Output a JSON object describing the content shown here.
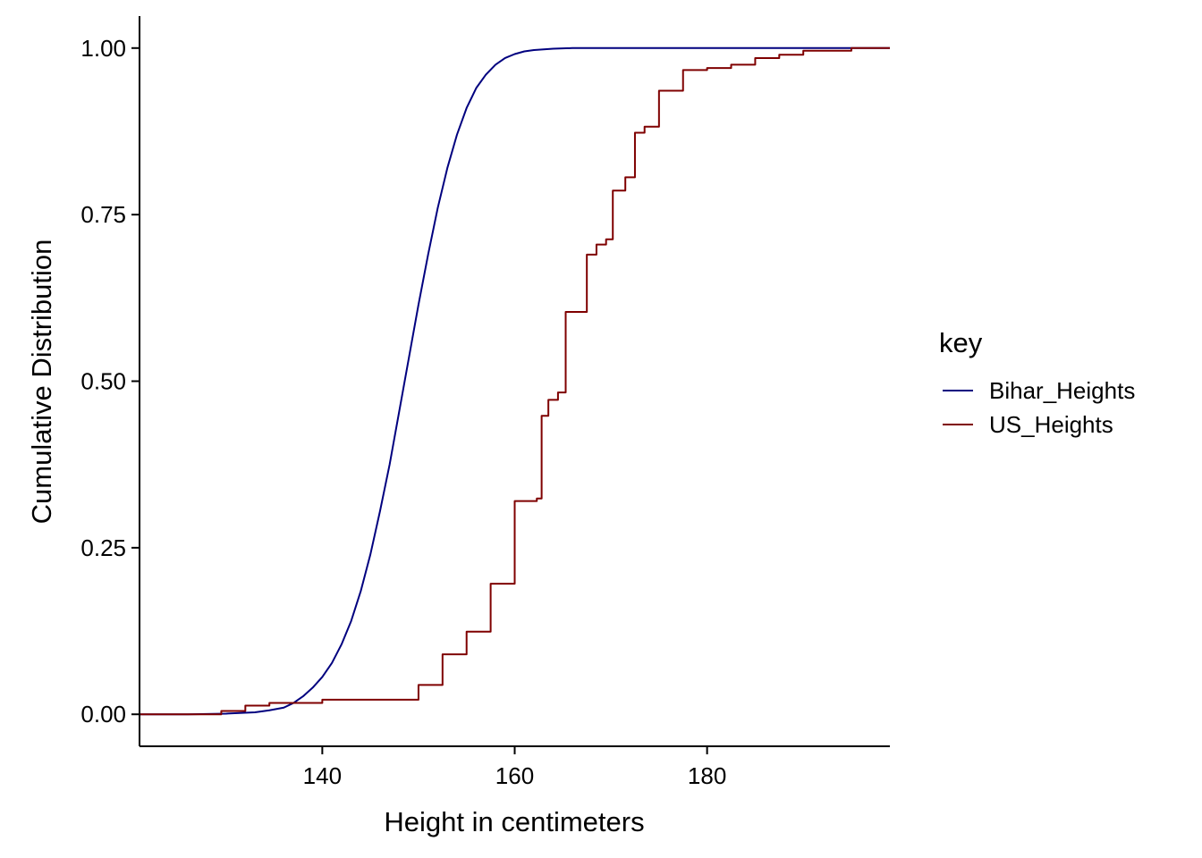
{
  "chart_data": {
    "type": "line",
    "title": "",
    "xlabel": "Height in centimeters",
    "ylabel": "Cumulative Distribution",
    "xlim": [
      121,
      199
    ],
    "ylim": [
      -0.048,
      1.048
    ],
    "x_ticks": [
      140,
      160,
      180
    ],
    "x_tick_labels": [
      "140",
      "160",
      "180"
    ],
    "y_ticks": [
      0,
      0.25,
      0.5,
      0.75,
      1.0
    ],
    "y_tick_labels": [
      "0.00",
      "0.25",
      "0.50",
      "0.75",
      "1.00"
    ],
    "grid": false,
    "legend": {
      "title": "key",
      "position": "right"
    },
    "series": [
      {
        "name": "Bihar_Heights",
        "color": "#00007F",
        "style": "smooth",
        "x": [
          121,
          126,
          130,
          133,
          134.5,
          136,
          137,
          138,
          139,
          140,
          141,
          142,
          143,
          144,
          145,
          146,
          147,
          148,
          149,
          150,
          151,
          152,
          153,
          154,
          155,
          156,
          157,
          158,
          159,
          160,
          161,
          162,
          163,
          164,
          165,
          166,
          168,
          170,
          175,
          195,
          199
        ],
        "y": [
          0.0,
          0.0,
          0.001,
          0.003,
          0.006,
          0.01,
          0.017,
          0.027,
          0.04,
          0.056,
          0.077,
          0.105,
          0.14,
          0.185,
          0.24,
          0.305,
          0.375,
          0.455,
          0.535,
          0.615,
          0.69,
          0.76,
          0.82,
          0.87,
          0.91,
          0.94,
          0.96,
          0.975,
          0.985,
          0.991,
          0.995,
          0.997,
          0.998,
          0.999,
          0.9995,
          1.0,
          1.0,
          1.0,
          1.0,
          1.0,
          1.0
        ]
      },
      {
        "name": "US_Heights",
        "color": "#7F0000",
        "style": "step",
        "x": [
          121,
          129.5,
          132,
          134.5,
          140,
          150,
          152.5,
          155,
          157.5,
          160,
          162.3,
          162.8,
          163.5,
          164.5,
          165.3,
          167.5,
          168.5,
          169.5,
          170.2,
          171.5,
          172.5,
          173.5,
          175,
          177.5,
          180,
          182.5,
          185,
          187.5,
          190,
          195,
          199
        ],
        "y": [
          0.0,
          0.005,
          0.013,
          0.017,
          0.022,
          0.044,
          0.09,
          0.124,
          0.196,
          0.32,
          0.324,
          0.448,
          0.472,
          0.483,
          0.604,
          0.69,
          0.705,
          0.713,
          0.786,
          0.806,
          0.873,
          0.882,
          0.936,
          0.967,
          0.97,
          0.975,
          0.985,
          0.99,
          0.996,
          1.0,
          1.0
        ]
      }
    ]
  }
}
